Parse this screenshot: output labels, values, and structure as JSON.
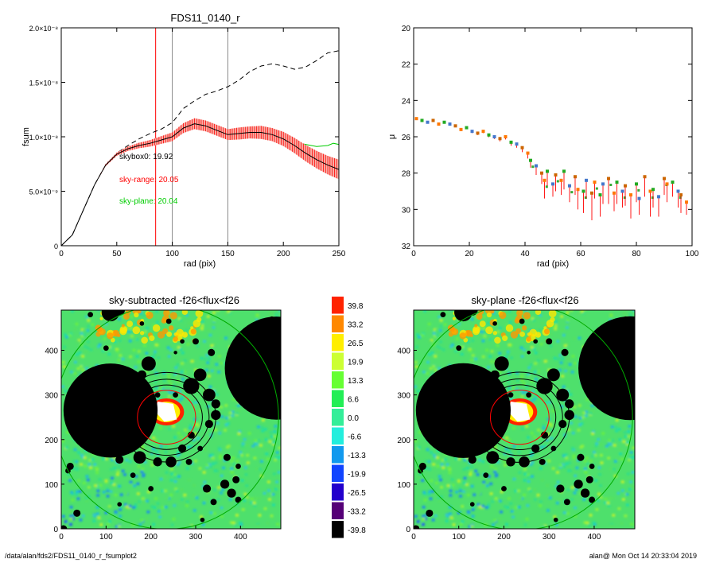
{
  "chart_data": [
    {
      "type": "line",
      "title": "FDS11_0140_r",
      "xlabel": "rad (pix)",
      "ylabel": "fsum",
      "xlim": [
        0,
        250
      ],
      "ylim": [
        0,
        2e-08
      ],
      "x_ticks": [
        "0",
        "50",
        "100",
        "150",
        "200",
        "250"
      ],
      "y_ticks": [
        "0",
        "5.0×10⁻⁹",
        "1.0×10⁻⁸",
        "1.5×10⁻⁸",
        "2.0×10⁻⁸"
      ],
      "y_tick_values": [
        0,
        5e-09,
        1e-08,
        1.5e-08,
        2e-08
      ],
      "vlines": [
        {
          "x": 85,
          "color": "#ff0000"
        },
        {
          "x": 100,
          "color": "#888888"
        },
        {
          "x": 150,
          "color": "#888888"
        }
      ],
      "annotations": [
        {
          "text": "skybox0: 19.92",
          "color": "#000000"
        },
        {
          "text": "sky-range: 20.05",
          "color": "#ff0000"
        },
        {
          "text": "sky-plane: 20.04",
          "color": "#00cc00"
        }
      ],
      "series": [
        {
          "style": "dashed",
          "color": "#000000",
          "x": [
            0,
            10,
            20,
            30,
            40,
            50,
            60,
            70,
            80,
            90,
            100,
            110,
            120,
            130,
            140,
            150,
            160,
            170,
            180,
            190,
            200,
            210,
            220,
            230,
            240,
            250
          ],
          "y": [
            0,
            1e-09,
            3.3e-09,
            5.6e-09,
            7.4e-09,
            8.5e-09,
            9.2e-09,
            9.8e-09,
            1.03e-08,
            1.07e-08,
            1.13e-08,
            1.26e-08,
            1.33e-08,
            1.39e-08,
            1.42e-08,
            1.46e-08,
            1.52e-08,
            1.6e-08,
            1.65e-08,
            1.67e-08,
            1.65e-08,
            1.62e-08,
            1.64e-08,
            1.7e-08,
            1.77e-08,
            1.79e-08
          ]
        },
        {
          "style": "solid",
          "color": "#00cc00",
          "x": [
            200,
            210,
            220,
            230,
            240,
            245,
            250
          ],
          "y": [
            9.8e-09,
            9.5e-09,
            9.3e-09,
            9.1e-09,
            9.2e-09,
            9.4e-09,
            9.3e-09
          ]
        },
        {
          "style": "solid",
          "color": "#000000",
          "errors": "#ff0000",
          "x": [
            0,
            10,
            20,
            30,
            40,
            50,
            60,
            70,
            80,
            90,
            100,
            110,
            120,
            130,
            140,
            150,
            160,
            170,
            180,
            190,
            200,
            210,
            220,
            230,
            240,
            250
          ],
          "y": [
            0,
            1e-09,
            3.3e-09,
            5.6e-09,
            7.4e-09,
            8.4e-09,
            8.9e-09,
            9.2e-09,
            9.4e-09,
            9.7e-09,
            1e-08,
            1.08e-08,
            1.12e-08,
            1.1e-08,
            1.06e-08,
            1.02e-08,
            1.03e-08,
            1.04e-08,
            1.04e-08,
            1.02e-08,
            9.8e-09,
            9.2e-09,
            8.5e-09,
            7.9e-09,
            7.4e-09,
            7e-09
          ],
          "err": [
            0,
            0,
            0,
            0,
            1e-10,
            1.5e-10,
            2e-10,
            2.5e-10,
            3e-10,
            3.5e-10,
            4e-10,
            4.5e-10,
            5e-10,
            5e-10,
            5e-10,
            5e-10,
            5.5e-10,
            5.5e-10,
            6e-10,
            6e-10,
            6.5e-10,
            7e-10,
            7.5e-10,
            8e-10,
            8.5e-10,
            9e-10
          ]
        }
      ]
    },
    {
      "type": "scatter",
      "title": "",
      "xlabel": "rad (pix)",
      "ylabel": "μ",
      "xlim": [
        0,
        100
      ],
      "ylim": [
        32,
        20
      ],
      "x_ticks": [
        "0",
        "20",
        "40",
        "60",
        "80",
        "100"
      ],
      "y_ticks": [
        "20",
        "22",
        "24",
        "26",
        "28",
        "30",
        "32"
      ],
      "points": {
        "x": [
          1,
          3,
          5,
          7,
          9,
          11,
          13,
          15,
          17,
          19,
          21,
          23,
          25,
          27,
          29,
          31,
          33,
          35,
          37,
          39,
          41,
          42,
          44,
          46,
          47,
          48,
          50,
          51,
          53,
          54,
          56,
          58,
          59,
          61,
          62,
          64,
          65,
          67,
          68,
          70,
          72,
          73,
          75,
          76,
          78,
          80,
          81,
          83,
          85,
          86,
          88,
          90,
          91,
          93,
          95,
          96,
          98
        ],
        "y": [
          25.0,
          25.1,
          25.2,
          25.1,
          25.3,
          25.2,
          25.3,
          25.4,
          25.6,
          25.5,
          25.7,
          25.8,
          25.7,
          25.9,
          26.0,
          26.1,
          26.0,
          26.3,
          26.4,
          26.6,
          26.9,
          27.3,
          27.6,
          28.0,
          28.4,
          27.9,
          28.6,
          28.1,
          28.4,
          27.9,
          28.7,
          28.2,
          28.9,
          29.0,
          28.4,
          29.1,
          28.5,
          29.2,
          28.6,
          28.3,
          29.1,
          28.5,
          29.0,
          28.7,
          29.2,
          28.6,
          29.4,
          28.2,
          29.0,
          28.9,
          29.3,
          28.3,
          28.6,
          28.5,
          29.0,
          29.2,
          29.6
        ],
        "err": [
          0.05,
          0.05,
          0.05,
          0.05,
          0.06,
          0.06,
          0.07,
          0.07,
          0.08,
          0.08,
          0.1,
          0.1,
          0.1,
          0.12,
          0.12,
          0.15,
          0.15,
          0.2,
          0.2,
          0.25,
          0.3,
          0.4,
          0.5,
          0.6,
          1.0,
          0.8,
          0.7,
          0.9,
          0.8,
          1.0,
          0.9,
          1.0,
          1.1,
          1.2,
          1.0,
          1.5,
          0.9,
          1.2,
          1.1,
          1.4,
          1.0,
          1.2,
          0.9,
          1.1,
          1.3,
          1.0,
          0.9,
          1.1,
          1.4,
          1.0,
          1.1,
          0.9,
          1.0,
          0.8,
          0.9,
          1.0,
          0.7
        ]
      }
    },
    {
      "type": "heatmap",
      "title": "sky-subtracted -f26<flux<f26",
      "xlim": [
        0,
        490
      ],
      "ylim": [
        0,
        490
      ],
      "x_ticks": [
        "0",
        "100",
        "200",
        "300",
        "400"
      ],
      "y_ticks": [
        "0",
        "100",
        "200",
        "300",
        "400"
      ]
    },
    {
      "type": "heatmap",
      "title": "sky-plane -f26<flux<f26",
      "xlim": [
        0,
        490
      ],
      "ylim": [
        0,
        490
      ],
      "x_ticks": [
        "0",
        "100",
        "200",
        "300",
        "400"
      ],
      "y_ticks": [
        "0",
        "100",
        "200",
        "300",
        "400"
      ]
    }
  ],
  "colorbar": {
    "labels": [
      "39.8",
      "33.2",
      "26.5",
      "19.9",
      "13.3",
      "6.6",
      "0.0",
      "-6.6",
      "-13.3",
      "-19.9",
      "-26.5",
      "-33.2",
      "-39.8"
    ],
    "colors": [
      "#ff2200",
      "#ff8800",
      "#ffee00",
      "#ccff33",
      "#66ff33",
      "#22ee55",
      "#33ee99",
      "#22eedd",
      "#1199ee",
      "#1144ff",
      "#2200cc",
      "#550077",
      "#000000"
    ]
  },
  "footer": {
    "left": "/data/alan/fds2/FDS11_0140_r_fsumplot2",
    "right": "alan@  Mon Oct 14 20:33:04 2019"
  }
}
